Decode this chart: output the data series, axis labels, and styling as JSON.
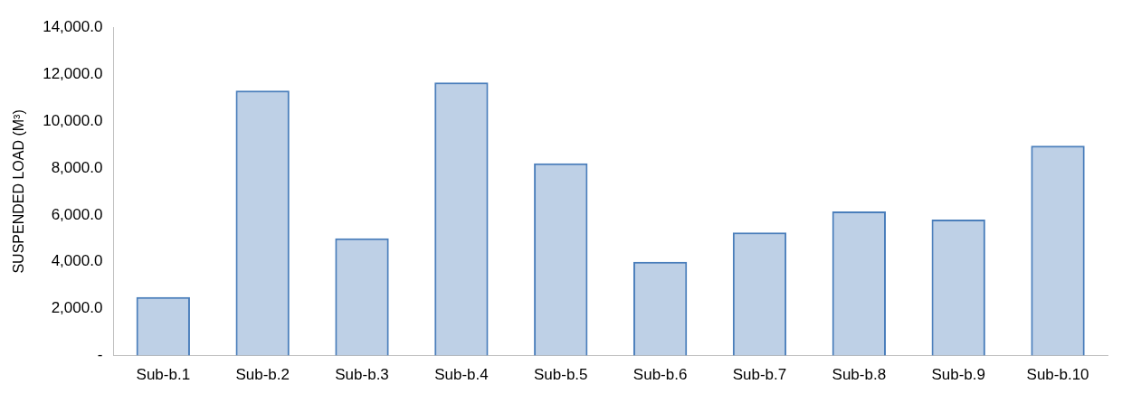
{
  "chart_data": {
    "type": "bar",
    "ylabel": "SUSPENDED LOAD (M³)",
    "categories": [
      "Sub-b.1",
      "Sub-b.2",
      "Sub-b.3",
      "Sub-b.4",
      "Sub-b.5",
      "Sub-b.6",
      "Sub-b.7",
      "Sub-b.8",
      "Sub-b.9",
      "Sub-b.10"
    ],
    "values": [
      2500,
      11300,
      5000,
      11650,
      8200,
      4000,
      5250,
      6150,
      5800,
      8950
    ],
    "color": "#4a7ebb",
    "ylim": [
      0,
      14000
    ],
    "yticks": [
      {
        "value": 0,
        "label": "-"
      },
      {
        "value": 2000,
        "label": "2,000.0"
      },
      {
        "value": 4000,
        "label": "4,000.0"
      },
      {
        "value": 6000,
        "label": "6,000.0"
      },
      {
        "value": 8000,
        "label": "8,000.0"
      },
      {
        "value": 10000,
        "label": "10,000.0"
      },
      {
        "value": 12000,
        "label": "12,000.0"
      },
      {
        "value": 14000,
        "label": "14,000.0"
      }
    ],
    "grid": false,
    "legend": false
  }
}
